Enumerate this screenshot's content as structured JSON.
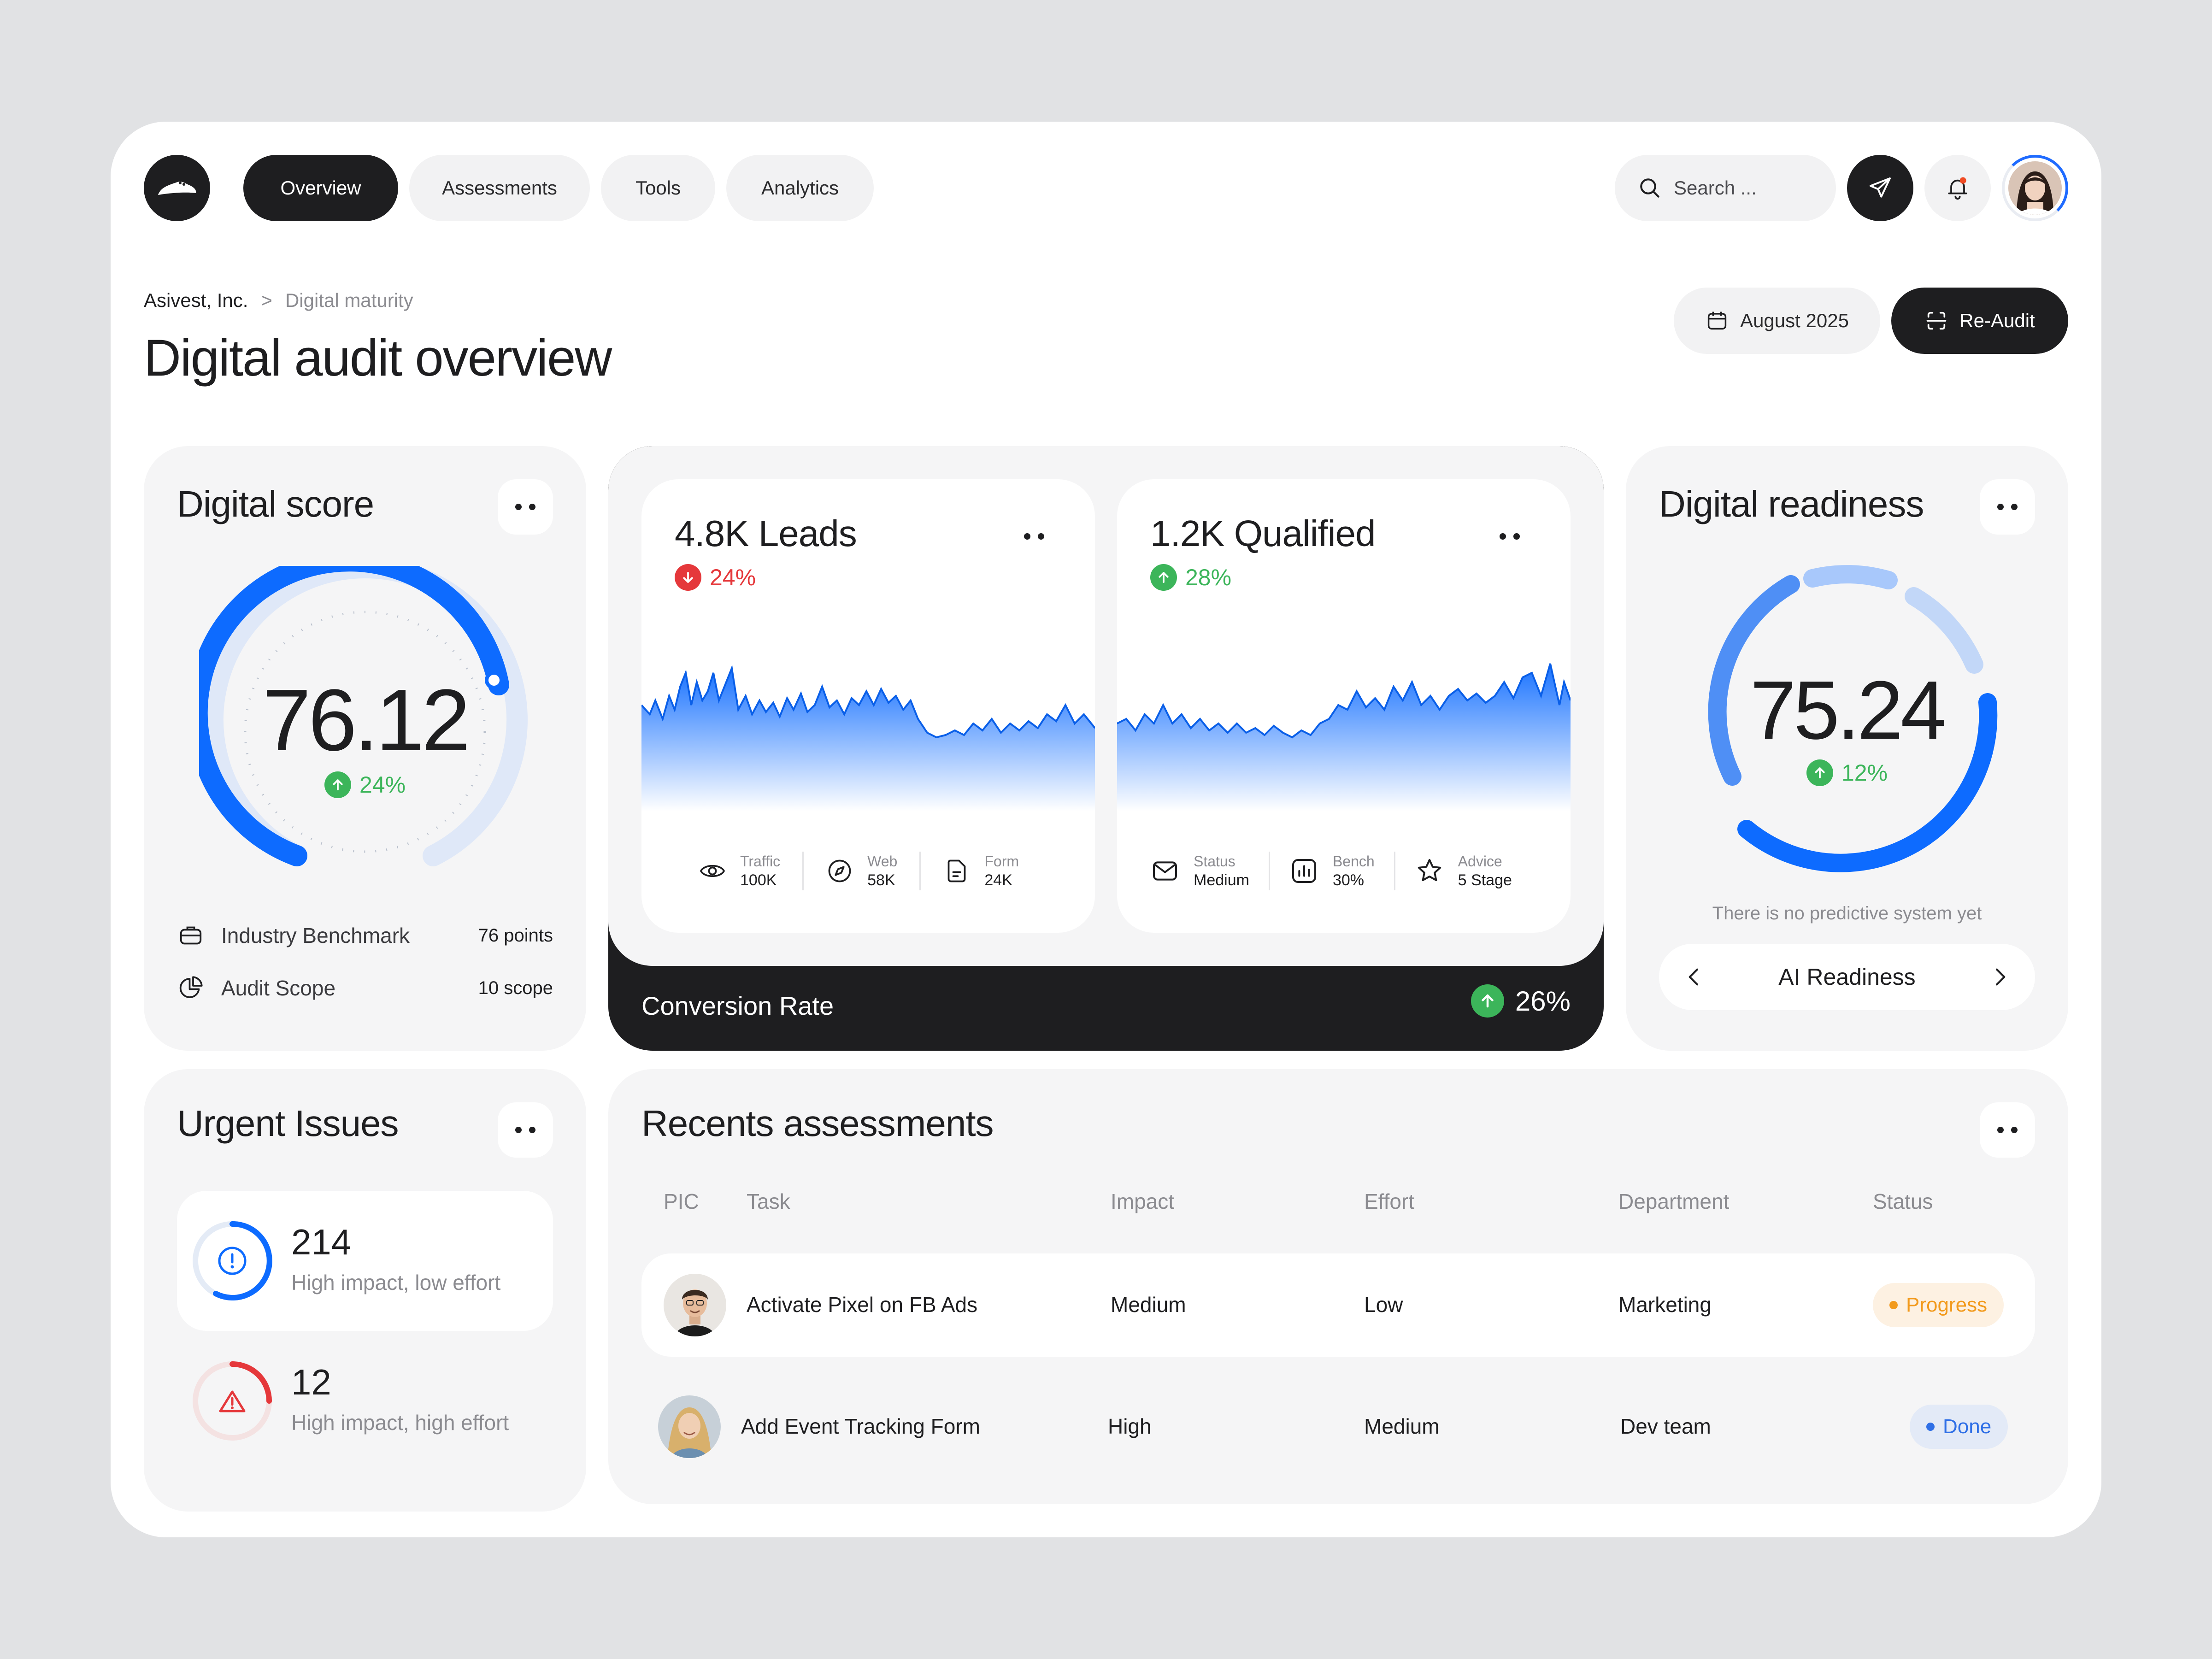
{
  "nav": {
    "logo": "brand-logo",
    "tabs": [
      "Overview",
      "Assessments",
      "Tools",
      "Analytics"
    ],
    "active_tab": "Overview",
    "search_placeholder": "Search ..."
  },
  "breadcrumb": {
    "company": "Asivest, Inc.",
    "separator": ">",
    "current": "Digital maturity"
  },
  "page_title": "Digital audit overview",
  "date_button": "August 2025",
  "reaudit_button": "Re-Audit",
  "digital_score": {
    "title": "Digital score",
    "score": "76.12",
    "change": "24%",
    "gauge_progress": 0.72,
    "benchmark_label": "Industry Benchmark",
    "benchmark_value": "76 points",
    "scope_label": "Audit Scope",
    "scope_value": "10 scope"
  },
  "leads": {
    "title": "4.8K Leads",
    "change": "24%",
    "stats": [
      {
        "label": "Traffic",
        "value": "100K"
      },
      {
        "label": "Web",
        "value": "58K"
      },
      {
        "label": "Form",
        "value": "24K"
      }
    ]
  },
  "qualified": {
    "title": "1.2K Qualified",
    "change": "28%",
    "stats": [
      {
        "label": "Status",
        "value": "Medium"
      },
      {
        "label": "Bench",
        "value": "30%"
      },
      {
        "label": "Advice",
        "value": "5 Stage"
      }
    ]
  },
  "conversion": {
    "label": "Conversion Rate",
    "value": "26%"
  },
  "digital_readiness": {
    "title": "Digital readiness",
    "score": "75.24",
    "change": "12%",
    "note": "There is no predictive system yet",
    "selector": "AI Readiness"
  },
  "urgent_issues": {
    "title": "Urgent Issues",
    "items": [
      {
        "count": "214",
        "label": "High impact, low effort"
      },
      {
        "count": "12",
        "label": "High impact, high effort"
      }
    ]
  },
  "recent_assessments": {
    "title": "Recents assessments",
    "columns": [
      "PIC",
      "Task",
      "Impact",
      "Effort",
      "Department",
      "Status"
    ],
    "rows": [
      {
        "task": "Activate Pixel on FB Ads",
        "impact": "Medium",
        "effort": "Low",
        "department": "Marketing",
        "status": "Progress"
      },
      {
        "task": "Add Event Tracking Form",
        "impact": "High",
        "effort": "Medium",
        "department": "Dev team",
        "status": "Done"
      }
    ]
  },
  "colors": {
    "accent_blue": "#0d6bff",
    "dark": "#1e1e20",
    "green": "#3cb55a",
    "red": "#e5383b",
    "progress_orange": "#f29a1c",
    "done_blue": "#2f6fe6"
  }
}
